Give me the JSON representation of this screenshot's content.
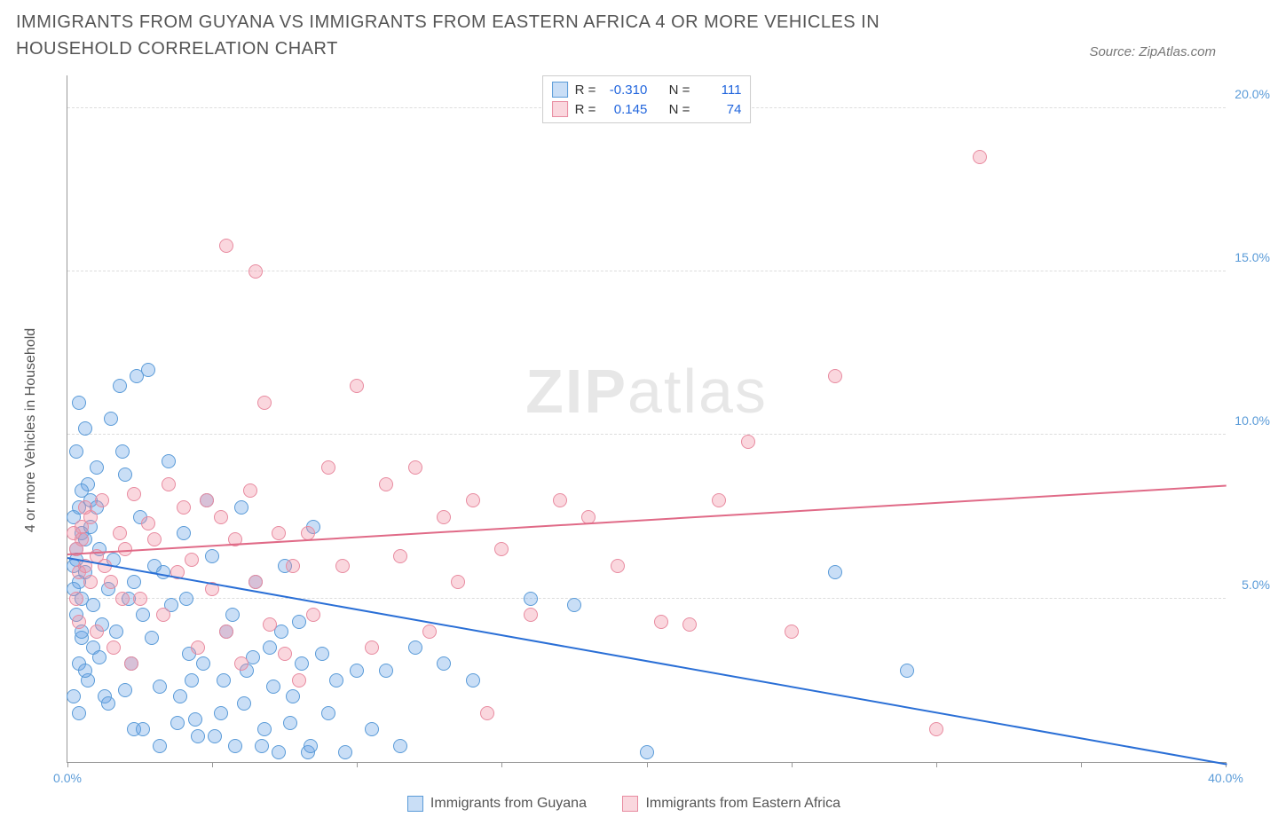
{
  "title": "IMMIGRANTS FROM GUYANA VS IMMIGRANTS FROM EASTERN AFRICA 4 OR MORE VEHICLES IN HOUSEHOLD CORRELATION CHART",
  "source": "Source: ZipAtlas.com",
  "watermark_bold": "ZIP",
  "watermark_light": "atlas",
  "ylabel": "4 or more Vehicles in Household",
  "series_a": {
    "name": "Immigrants from Guyana",
    "fill": "rgba(100,160,230,0.35)",
    "stroke": "#5a9bd8",
    "line": "#2a6fd6",
    "r_label": "R =",
    "r_value": "-0.310",
    "n_label": "N =",
    "n_value": "111",
    "trend": {
      "x1": 0,
      "y1": 6.3,
      "x2": 40,
      "y2": 0.0
    }
  },
  "series_b": {
    "name": "Immigrants from Eastern Africa",
    "fill": "rgba(240,140,160,0.35)",
    "stroke": "#e88ba0",
    "line": "#e06a87",
    "r_label": "R =",
    "r_value": "0.145",
    "n_label": "N =",
    "n_value": "74",
    "trend": {
      "x1": 0,
      "y1": 6.4,
      "x2": 40,
      "y2": 8.5
    }
  },
  "axes": {
    "xlim": [
      0,
      40
    ],
    "ylim": [
      0,
      21
    ],
    "yticks": [
      {
        "v": 5,
        "label": "5.0%"
      },
      {
        "v": 10,
        "label": "10.0%"
      },
      {
        "v": 15,
        "label": "15.0%"
      },
      {
        "v": 20,
        "label": "20.0%"
      }
    ],
    "xticks": [
      0,
      5,
      10,
      15,
      20,
      25,
      30,
      35,
      40
    ],
    "x_first_label": "0.0%",
    "x_last_label": "40.0%",
    "ytick_color": "#5a9bd8",
    "xtick_first_color": "#5a9bd8",
    "xtick_last_color": "#5a9bd8"
  },
  "marker_radius": 8,
  "points_a": [
    [
      0.3,
      6.2
    ],
    [
      0.5,
      7.0
    ],
    [
      0.4,
      5.5
    ],
    [
      0.6,
      6.8
    ],
    [
      0.2,
      6.0
    ],
    [
      0.8,
      7.2
    ],
    [
      0.5,
      5.0
    ],
    [
      0.7,
      8.5
    ],
    [
      1.0,
      9.0
    ],
    [
      1.2,
      4.2
    ],
    [
      0.9,
      3.5
    ],
    [
      1.5,
      10.5
    ],
    [
      1.3,
      2.0
    ],
    [
      1.8,
      11.5
    ],
    [
      1.1,
      6.5
    ],
    [
      1.4,
      5.3
    ],
    [
      2.0,
      8.8
    ],
    [
      2.2,
      3.0
    ],
    [
      2.5,
      7.5
    ],
    [
      2.3,
      1.0
    ],
    [
      2.8,
      12.0
    ],
    [
      2.6,
      4.5
    ],
    [
      3.0,
      6.0
    ],
    [
      3.2,
      2.3
    ],
    [
      3.5,
      9.2
    ],
    [
      3.8,
      1.2
    ],
    [
      3.3,
      5.8
    ],
    [
      4.0,
      7.0
    ],
    [
      4.2,
      3.3
    ],
    [
      4.5,
      0.8
    ],
    [
      4.8,
      8.0
    ],
    [
      4.3,
      2.5
    ],
    [
      5.0,
      6.3
    ],
    [
      5.3,
      1.5
    ],
    [
      5.5,
      4.0
    ],
    [
      5.8,
      0.5
    ],
    [
      6.0,
      7.8
    ],
    [
      6.2,
      2.8
    ],
    [
      6.5,
      5.5
    ],
    [
      6.8,
      1.0
    ],
    [
      7.0,
      3.5
    ],
    [
      7.3,
      0.3
    ],
    [
      7.5,
      6.0
    ],
    [
      7.8,
      2.0
    ],
    [
      8.0,
      4.3
    ],
    [
      8.3,
      0.3
    ],
    [
      8.5,
      7.2
    ],
    [
      0.4,
      11.0
    ],
    [
      0.6,
      10.2
    ],
    [
      0.3,
      9.5
    ],
    [
      0.8,
      8.0
    ],
    [
      1.0,
      7.8
    ],
    [
      1.6,
      6.2
    ],
    [
      1.9,
      9.5
    ],
    [
      2.1,
      5.0
    ],
    [
      2.4,
      11.8
    ],
    [
      0.5,
      3.8
    ],
    [
      0.7,
      2.5
    ],
    [
      0.4,
      1.5
    ],
    [
      0.9,
      4.8
    ],
    [
      1.1,
      3.2
    ],
    [
      1.4,
      1.8
    ],
    [
      1.7,
      4.0
    ],
    [
      2.0,
      2.2
    ],
    [
      2.3,
      5.5
    ],
    [
      2.6,
      1.0
    ],
    [
      2.9,
      3.8
    ],
    [
      3.2,
      0.5
    ],
    [
      3.6,
      4.8
    ],
    [
      3.9,
      2.0
    ],
    [
      4.1,
      5.0
    ],
    [
      4.4,
      1.3
    ],
    [
      4.7,
      3.0
    ],
    [
      5.1,
      0.8
    ],
    [
      5.4,
      2.5
    ],
    [
      5.7,
      4.5
    ],
    [
      6.1,
      1.8
    ],
    [
      6.4,
      3.2
    ],
    [
      6.7,
      0.5
    ],
    [
      7.1,
      2.3
    ],
    [
      7.4,
      4.0
    ],
    [
      7.7,
      1.2
    ],
    [
      8.1,
      3.0
    ],
    [
      8.4,
      0.5
    ],
    [
      8.8,
      3.3
    ],
    [
      9.0,
      1.5
    ],
    [
      9.3,
      2.5
    ],
    [
      9.6,
      0.3
    ],
    [
      10.0,
      2.8
    ],
    [
      10.5,
      1.0
    ],
    [
      11.0,
      2.8
    ],
    [
      11.5,
      0.5
    ],
    [
      12.0,
      3.5
    ],
    [
      13.0,
      3.0
    ],
    [
      14.0,
      2.5
    ],
    [
      16.0,
      5.0
    ],
    [
      17.5,
      4.8
    ],
    [
      20.0,
      0.3
    ],
    [
      26.5,
      5.8
    ],
    [
      29.0,
      2.8
    ],
    [
      0.2,
      7.5
    ],
    [
      0.3,
      4.5
    ],
    [
      0.5,
      8.3
    ],
    [
      0.4,
      3.0
    ],
    [
      0.6,
      5.8
    ],
    [
      0.2,
      2.0
    ],
    [
      0.3,
      6.5
    ],
    [
      0.5,
      4.0
    ],
    [
      0.4,
      7.8
    ],
    [
      0.6,
      2.8
    ],
    [
      0.2,
      5.3
    ]
  ],
  "points_b": [
    [
      0.3,
      6.5
    ],
    [
      0.5,
      7.2
    ],
    [
      0.4,
      5.8
    ],
    [
      0.6,
      6.0
    ],
    [
      0.8,
      7.5
    ],
    [
      1.0,
      6.3
    ],
    [
      1.2,
      8.0
    ],
    [
      1.5,
      5.5
    ],
    [
      1.8,
      7.0
    ],
    [
      2.0,
      6.5
    ],
    [
      2.3,
      8.2
    ],
    [
      2.5,
      5.0
    ],
    [
      2.8,
      7.3
    ],
    [
      3.0,
      6.8
    ],
    [
      3.3,
      4.5
    ],
    [
      3.5,
      8.5
    ],
    [
      3.8,
      5.8
    ],
    [
      4.0,
      7.8
    ],
    [
      4.3,
      6.2
    ],
    [
      4.5,
      3.5
    ],
    [
      4.8,
      8.0
    ],
    [
      5.0,
      5.3
    ],
    [
      5.3,
      7.5
    ],
    [
      5.5,
      4.0
    ],
    [
      5.8,
      6.8
    ],
    [
      6.0,
      3.0
    ],
    [
      6.3,
      8.3
    ],
    [
      6.5,
      5.5
    ],
    [
      6.8,
      11.0
    ],
    [
      7.0,
      4.2
    ],
    [
      7.3,
      7.0
    ],
    [
      7.5,
      3.3
    ],
    [
      7.8,
      6.0
    ],
    [
      8.0,
      2.5
    ],
    [
      8.3,
      7.0
    ],
    [
      8.5,
      4.5
    ],
    [
      9.0,
      9.0
    ],
    [
      9.5,
      6.0
    ],
    [
      10.0,
      11.5
    ],
    [
      10.5,
      3.5
    ],
    [
      11.0,
      8.5
    ],
    [
      11.5,
      6.3
    ],
    [
      12.0,
      9.0
    ],
    [
      12.5,
      4.0
    ],
    [
      13.0,
      7.5
    ],
    [
      13.5,
      5.5
    ],
    [
      14.0,
      8.0
    ],
    [
      14.5,
      1.5
    ],
    [
      15.0,
      6.5
    ],
    [
      16.0,
      4.5
    ],
    [
      17.0,
      8.0
    ],
    [
      18.0,
      7.5
    ],
    [
      19.0,
      6.0
    ],
    [
      20.5,
      4.3
    ],
    [
      21.5,
      4.2
    ],
    [
      22.5,
      8.0
    ],
    [
      23.5,
      9.8
    ],
    [
      25.0,
      4.0
    ],
    [
      26.5,
      11.8
    ],
    [
      30.0,
      1.0
    ],
    [
      31.5,
      18.5
    ],
    [
      5.5,
      15.8
    ],
    [
      6.5,
      15.0
    ],
    [
      0.2,
      7.0
    ],
    [
      0.3,
      5.0
    ],
    [
      0.5,
      6.8
    ],
    [
      0.4,
      4.3
    ],
    [
      0.6,
      7.8
    ],
    [
      0.8,
      5.5
    ],
    [
      1.0,
      4.0
    ],
    [
      1.3,
      6.0
    ],
    [
      1.6,
      3.5
    ],
    [
      1.9,
      5.0
    ],
    [
      2.2,
      3.0
    ]
  ]
}
